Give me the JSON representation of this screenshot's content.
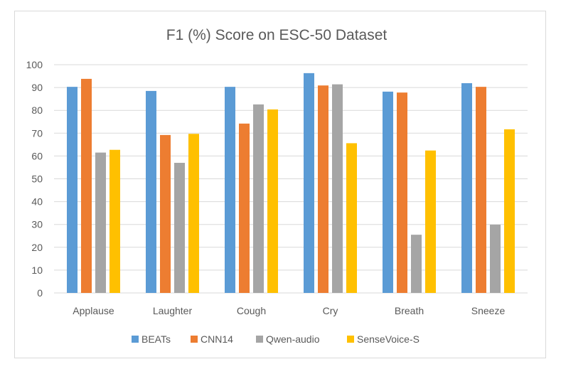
{
  "chart_data": {
    "type": "bar",
    "title": "F1 (%) Score on ESC-50 Dataset",
    "xlabel": "",
    "ylabel": "",
    "categories": [
      "Applause",
      "Laughter",
      "Cough",
      "Cry",
      "Breath",
      "Sneeze"
    ],
    "ylim": [
      0,
      100
    ],
    "yticks": [
      0,
      10,
      20,
      30,
      40,
      50,
      60,
      70,
      80,
      90,
      100
    ],
    "grid": true,
    "legend_position": "bottom",
    "series": [
      {
        "name": "BEATs",
        "color": "#5b9bd5",
        "values": [
          90.3,
          88.5,
          90.3,
          96.3,
          88.2,
          91.9
        ]
      },
      {
        "name": "CNN14",
        "color": "#ed7d31",
        "values": [
          93.8,
          69.2,
          74.2,
          90.9,
          87.8,
          90.3
        ]
      },
      {
        "name": "Qwen-audio",
        "color": "#a5a5a5",
        "values": [
          61.5,
          57.0,
          82.6,
          91.4,
          25.5,
          29.9
        ]
      },
      {
        "name": "SenseVoice-S",
        "color": "#ffc000",
        "values": [
          62.7,
          69.7,
          80.4,
          65.6,
          62.4,
          71.7
        ]
      }
    ]
  }
}
